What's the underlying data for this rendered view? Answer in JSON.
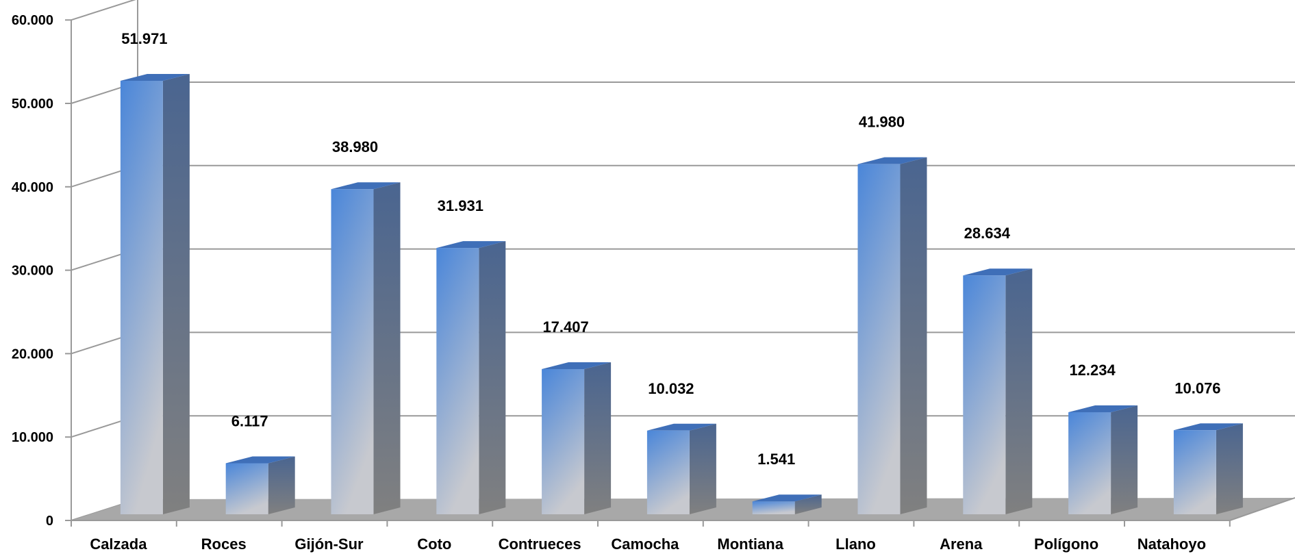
{
  "chart_data": {
    "type": "bar",
    "title": "",
    "xlabel": "",
    "ylabel": "",
    "categories": [
      "Calzada",
      "Roces",
      "Gijón-Sur",
      "Coto",
      "Contrueces",
      "Camocha",
      "Montiana",
      "Llano",
      "Arena",
      "Polígono",
      "Natahoyo"
    ],
    "values": [
      51971,
      6117,
      38980,
      31931,
      17407,
      10032,
      1541,
      41980,
      28634,
      12234,
      10076
    ],
    "value_labels": [
      "51.971",
      "6.117",
      "38.980",
      "31.931",
      "17.407",
      "10.032",
      "1.541",
      "41.980",
      "28.634",
      "12.234",
      "10.076"
    ],
    "ylim": [
      0,
      60000
    ],
    "y_ticks": [
      0,
      10000,
      20000,
      30000,
      40000,
      50000,
      60000
    ],
    "y_tick_labels": [
      "0",
      "10.000",
      "20.000",
      "30.000",
      "40.000",
      "50.000",
      "60.000"
    ],
    "grid": true,
    "legend": "none",
    "style": "3d-column",
    "colors": {
      "bar_top": "#4a86d9",
      "bar_bottom": "#c7c9cf",
      "bar_side_top": "#4a6590",
      "bar_side_bottom": "#808080",
      "floor": "#a8a8a8",
      "grid": "#999999"
    }
  }
}
